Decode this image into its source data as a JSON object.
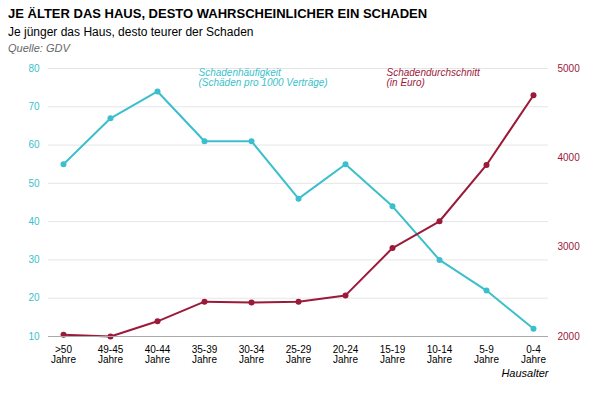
{
  "chart_data": {
    "type": "line",
    "title": "JE ÄLTER DAS HAUS, DESTO WAHRSCHEINLICHER EIN SCHADEN",
    "subtitle": "Je jünger das Haus, desto teurer der Schaden",
    "source": "Quelle: GDV",
    "xlabel": "Hausalter",
    "categories": [
      ">50\nJahre",
      "49-45\nJahre",
      "40-44\nJahre",
      "35-39\nJahre",
      "30-34\nJahre",
      "25-29\nJahre",
      "20-24\nJahre",
      "15-19\nJahre",
      "10-14\nJahre",
      "5-9\nJahre",
      "0-4\nJahre"
    ],
    "series": [
      {
        "name": "Schadenhäufigkeit\n(Schäden pro 1000 Verträge)",
        "color": "#3bbfcc",
        "marker": "circle",
        "values": [
          55,
          67,
          74,
          61,
          61,
          46,
          55,
          44,
          30,
          22,
          12
        ]
      },
      {
        "name": "Schadendurchschnitt\n(in Euro)",
        "color": "#9b1a3a",
        "marker": "circle",
        "axis": "y2",
        "values": [
          2020,
          2000,
          2170,
          2390,
          2380,
          2390,
          2460,
          2990,
          3290,
          3920,
          4700
        ]
      }
    ],
    "ylim": [
      10,
      80
    ],
    "yticks": [
      10,
      20,
      30,
      40,
      50,
      60,
      70,
      80
    ],
    "y2lim": [
      2000,
      5000
    ],
    "y2ticks": [
      2000,
      3000,
      4000,
      5000
    ],
    "grid": true
  }
}
